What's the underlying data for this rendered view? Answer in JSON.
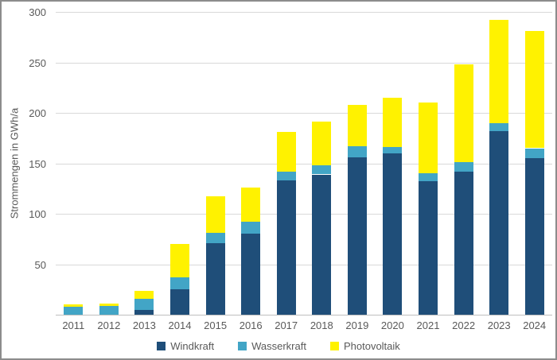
{
  "chart_data": {
    "type": "bar",
    "stacked": true,
    "title": "",
    "xlabel": "",
    "ylabel": "Strommengen in GWh/a",
    "ylim": [
      0,
      300
    ],
    "yticks": [
      50,
      100,
      150,
      200,
      250,
      300
    ],
    "grid": true,
    "legend_position": "bottom",
    "categories": [
      "2011",
      "2012",
      "2013",
      "2014",
      "2015",
      "2016",
      "2017",
      "2018",
      "2019",
      "2020",
      "2021",
      "2022",
      "2023",
      "2024"
    ],
    "series": [
      {
        "name": "Windkraft",
        "color": "#1F4E79",
        "values": [
          0,
          0,
          5,
          25,
          71,
          80,
          133,
          139,
          156,
          160,
          132,
          142,
          182,
          155
        ]
      },
      {
        "name": "Wasserkraft",
        "color": "#42A5C6",
        "values": [
          8,
          9,
          11,
          12,
          10,
          12,
          9,
          9,
          11,
          6,
          8,
          9,
          8,
          10
        ]
      },
      {
        "name": "Photovoltaik",
        "color": "#FFF200",
        "values": [
          2,
          2,
          8,
          33,
          36,
          34,
          39,
          43,
          41,
          49,
          70,
          97,
          102,
          116
        ]
      }
    ],
    "totals": [
      10,
      11,
      24,
      70,
      117,
      126,
      181,
      191,
      208,
      215,
      210,
      248,
      292,
      281
    ]
  },
  "style_colors": {
    "text": "#595959",
    "gridline": "#d9d9d9",
    "axisline": "#bfbfbf",
    "background": "#ffffff"
  }
}
